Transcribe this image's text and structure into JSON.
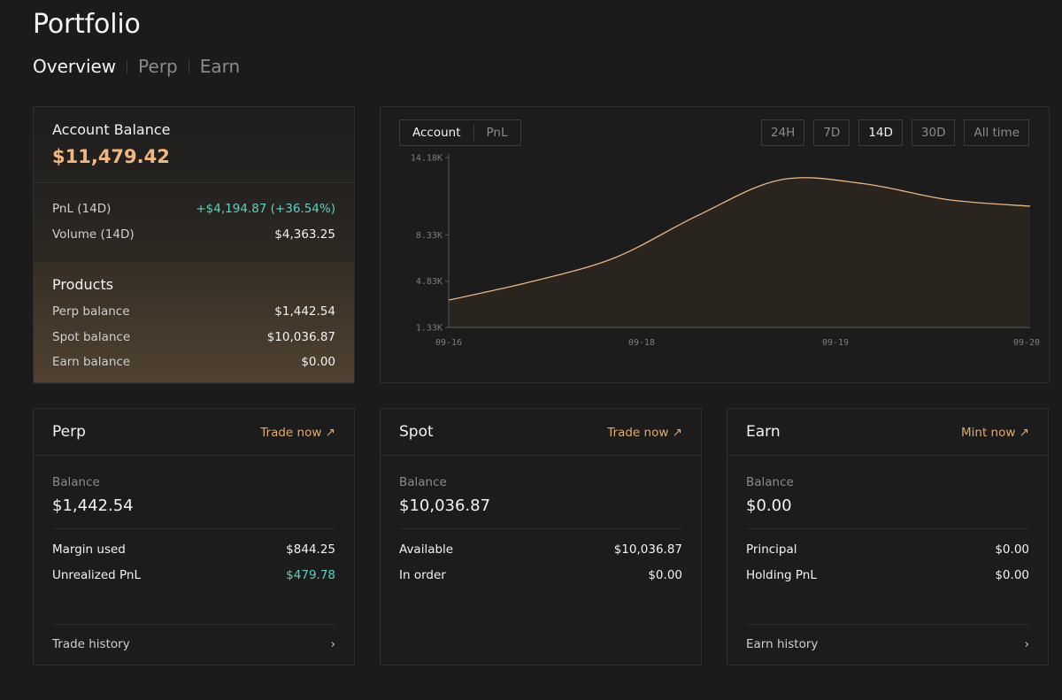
{
  "page": {
    "title": "Portfolio",
    "tabs": [
      "Overview",
      "Perp",
      "Earn"
    ]
  },
  "account": {
    "balance_label": "Account Balance",
    "balance": "$11,479.42",
    "pnl_label": "PnL (14D)",
    "pnl_value": "+$4,194.87 (+36.54%)",
    "volume_label": "Volume (14D)",
    "volume_value": "$4,363.25",
    "products_title": "Products",
    "products": [
      {
        "label": "Perp balance",
        "value": "$1,442.54"
      },
      {
        "label": "Spot balance",
        "value": "$10,036.87"
      },
      {
        "label": "Earn balance",
        "value": "$0.00"
      }
    ]
  },
  "chart_toggle": [
    "Account",
    "PnL"
  ],
  "chart_ranges": [
    "24H",
    "7D",
    "14D",
    "30D",
    "All time"
  ],
  "colors": {
    "accent": "#f0b87e",
    "positive": "#5ed1c0",
    "line": "#e8b585",
    "area": "#2a241f"
  },
  "chart_data": {
    "type": "area",
    "x_labels": [
      "09-16",
      "09-18",
      "09-19",
      "09-20"
    ],
    "y_ticks": [
      "1.33K",
      "4.83K",
      "8.33K",
      "14.18K"
    ],
    "ylim": [
      1330,
      14180
    ],
    "x": [
      "09-16",
      "09-17",
      "09-18",
      "09-18",
      "09-19",
      "09-19",
      "09-20",
      "09-20"
    ],
    "values": [
      3400,
      4800,
      6600,
      9800,
      12500,
      12200,
      11000,
      10500
    ],
    "grid": false,
    "legend": false
  },
  "cards": [
    {
      "title": "Perp",
      "action": "Trade now ↗",
      "balance_label": "Balance",
      "balance": "$1,442.54",
      "rows": [
        {
          "label": "Margin used",
          "value": "$844.25"
        },
        {
          "label": "Unrealized PnL",
          "value": "$479.78"
        }
      ],
      "footer": "Trade history",
      "chevron": "›"
    },
    {
      "title": "Spot",
      "action": "Trade now ↗",
      "balance_label": "Balance",
      "balance": "$10,036.87",
      "rows": [
        {
          "label": "Available",
          "value": "$10,036.87"
        },
        {
          "label": "In order",
          "value": "$0.00"
        }
      ]
    },
    {
      "title": "Earn",
      "action": "Mint now ↗",
      "balance_label": "Balance",
      "balance": "$0.00",
      "rows": [
        {
          "label": "Principal",
          "value": "$0.00"
        },
        {
          "label": "Holding PnL",
          "value": "$0.00"
        }
      ],
      "footer": "Earn history",
      "chevron": "›"
    }
  ]
}
